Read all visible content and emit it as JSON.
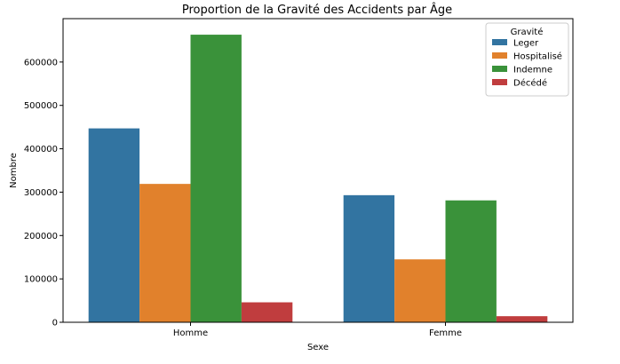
{
  "chart_data": {
    "type": "bar",
    "title": "Proportion de la Gravité des Accidents par Âge",
    "xlabel": "Sexe",
    "ylabel": "Nombre",
    "categories": [
      "Homme",
      "Femme"
    ],
    "ylim": [
      0,
      700000
    ],
    "yticks": [
      0,
      100000,
      200000,
      300000,
      400000,
      500000,
      600000
    ],
    "ytick_labels": [
      "0",
      "100000",
      "200000",
      "300000",
      "400000",
      "500000",
      "600000"
    ],
    "legend": {
      "title": "Gravité",
      "position": "top-right"
    },
    "grid": false,
    "series": [
      {
        "name": "Leger",
        "color": "#3274a1",
        "values": [
          447000,
          293000
        ]
      },
      {
        "name": "Hospitalisé",
        "color": "#e1812c",
        "values": [
          319000,
          145000
        ]
      },
      {
        "name": "Indemne",
        "color": "#3a923a",
        "values": [
          663000,
          281000
        ]
      },
      {
        "name": "Décédé",
        "color": "#c03d3e",
        "values": [
          46000,
          14000
        ]
      }
    ]
  }
}
